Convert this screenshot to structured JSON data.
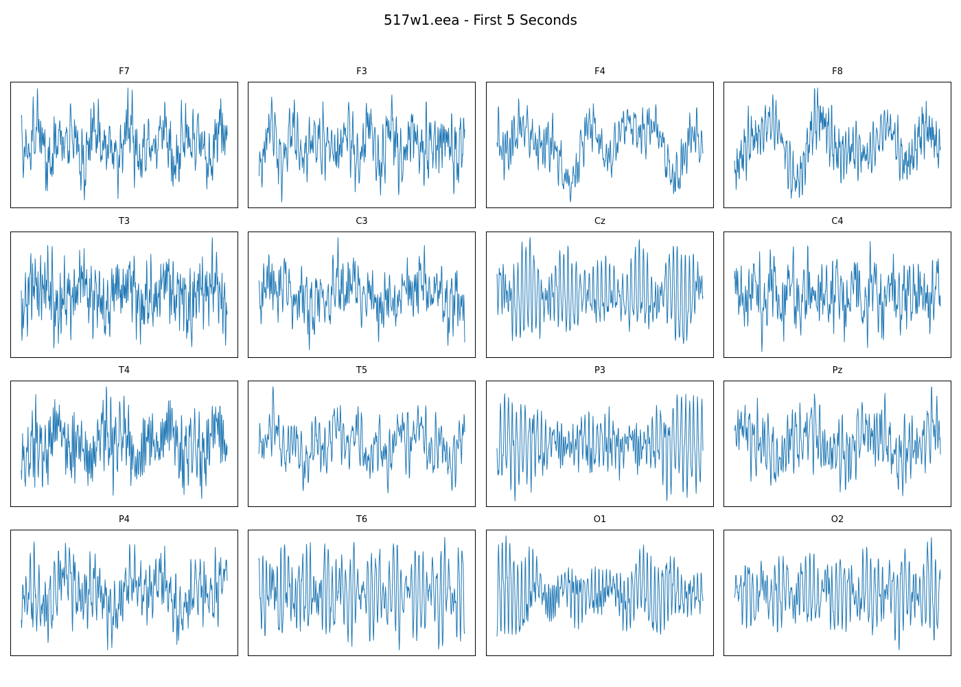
{
  "figure": {
    "title": "517w1.eea - First 5 Seconds"
  },
  "colors": {
    "trace": "#1f77b4",
    "frame": "#000000",
    "background": "#ffffff"
  },
  "chart_data": {
    "type": "line",
    "layout": "4x4 grid",
    "grid": false,
    "axes_ticks": false,
    "legend": "none",
    "samples_per_channel": 640,
    "panels": [
      {
        "name": "F7",
        "seed": 7,
        "style": "mixed",
        "ylim": [
          -1,
          1
        ]
      },
      {
        "name": "F3",
        "seed": 3,
        "style": "mixed",
        "ylim": [
          -1,
          1
        ]
      },
      {
        "name": "F4",
        "seed": 14,
        "style": "slow",
        "ylim": [
          -1,
          1
        ]
      },
      {
        "name": "F8",
        "seed": 18,
        "style": "slow",
        "ylim": [
          -1,
          1
        ]
      },
      {
        "name": "T3",
        "seed": 23,
        "style": "mixed",
        "ylim": [
          -1,
          1
        ]
      },
      {
        "name": "C3",
        "seed": 33,
        "style": "mixed",
        "ylim": [
          -1,
          1
        ]
      },
      {
        "name": "Cz",
        "seed": 41,
        "style": "alpha",
        "ylim": [
          -1,
          1
        ]
      },
      {
        "name": "C4",
        "seed": 44,
        "style": "mixed",
        "ylim": [
          -1,
          1
        ]
      },
      {
        "name": "T4",
        "seed": 54,
        "style": "mixed",
        "ylim": [
          -1,
          1
        ]
      },
      {
        "name": "T5",
        "seed": 55,
        "style": "mixed",
        "ylim": [
          -1,
          1
        ]
      },
      {
        "name": "P3",
        "seed": 63,
        "style": "alpha",
        "ylim": [
          -1,
          1
        ]
      },
      {
        "name": "Pz",
        "seed": 71,
        "style": "mixed",
        "ylim": [
          -1,
          1
        ]
      },
      {
        "name": "P4",
        "seed": 84,
        "style": "mixed",
        "ylim": [
          -1,
          1
        ]
      },
      {
        "name": "T6",
        "seed": 86,
        "style": "alpha",
        "ylim": [
          -1,
          1
        ]
      },
      {
        "name": "O1",
        "seed": 91,
        "style": "alpha",
        "ylim": [
          -1,
          1
        ]
      },
      {
        "name": "O2",
        "seed": 92,
        "style": "alpha",
        "ylim": [
          -1,
          1
        ]
      }
    ]
  }
}
